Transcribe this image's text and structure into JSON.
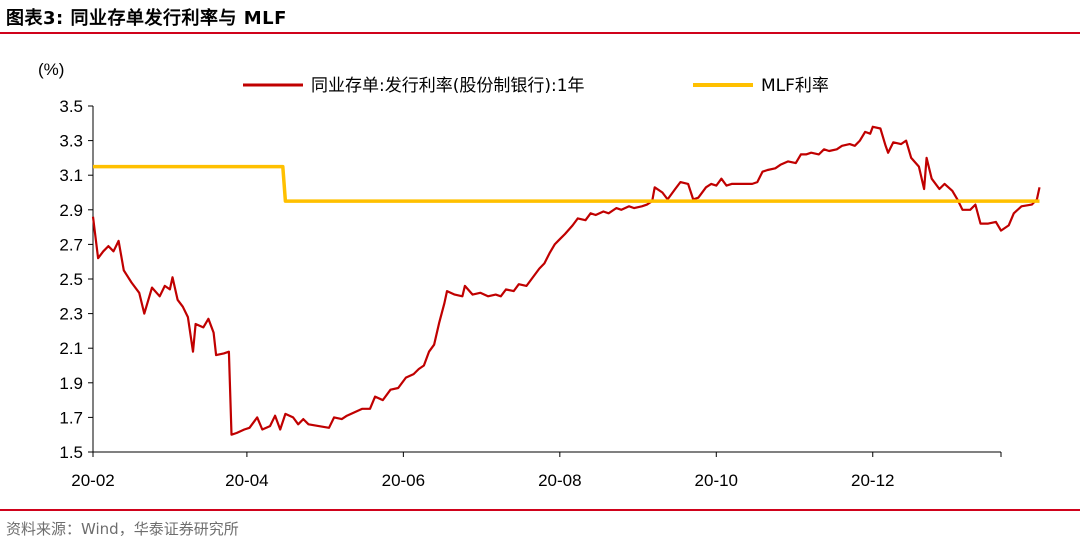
{
  "header": {
    "title": "图表3:  同业存单发行利率与 MLF",
    "rule_color": "#d0021b"
  },
  "footer": {
    "source": "资料来源：Wind，华泰证券研究所"
  },
  "chart_data": {
    "type": "line",
    "ylabel": "(%)",
    "ylim": [
      1.5,
      3.5
    ],
    "yticks": [
      "3.5",
      "3.3",
      "3.1",
      "2.9",
      "2.7",
      "2.5",
      "2.3",
      "2.1",
      "1.9",
      "1.7",
      "1.5"
    ],
    "xlim": [
      "2020-02-01",
      "2021-01-20"
    ],
    "xticks": [
      {
        "date": "2020-02-01",
        "label": "20-02"
      },
      {
        "date": "2020-04-01",
        "label": "20-04"
      },
      {
        "date": "2020-06-01",
        "label": "20-06"
      },
      {
        "date": "2020-08-01",
        "label": "20-08"
      },
      {
        "date": "2020-10-01",
        "label": "20-10"
      },
      {
        "date": "2020-12-01",
        "label": "20-12"
      }
    ],
    "grid": false,
    "legend_position": "top",
    "series": [
      {
        "name": "同业存单:发行利率(股份制银行):1年",
        "color": "#c00000",
        "points": [
          [
            "2020-02-01",
            2.86
          ],
          [
            "2020-02-03",
            2.62
          ],
          [
            "2020-02-05",
            2.66
          ],
          [
            "2020-02-07",
            2.69
          ],
          [
            "2020-02-09",
            2.66
          ],
          [
            "2020-02-11",
            2.72
          ],
          [
            "2020-02-13",
            2.55
          ],
          [
            "2020-02-16",
            2.48
          ],
          [
            "2020-02-19",
            2.42
          ],
          [
            "2020-02-21",
            2.3
          ],
          [
            "2020-02-24",
            2.45
          ],
          [
            "2020-02-27",
            2.4
          ],
          [
            "2020-02-29",
            2.46
          ],
          [
            "2020-03-02",
            2.44
          ],
          [
            "2020-03-03",
            2.51
          ],
          [
            "2020-03-05",
            2.38
          ],
          [
            "2020-03-07",
            2.34
          ],
          [
            "2020-03-09",
            2.28
          ],
          [
            "2020-03-11",
            2.08
          ],
          [
            "2020-03-12",
            2.24
          ],
          [
            "2020-03-15",
            2.22
          ],
          [
            "2020-03-17",
            2.27
          ],
          [
            "2020-03-19",
            2.19
          ],
          [
            "2020-03-20",
            2.06
          ],
          [
            "2020-03-23",
            2.07
          ],
          [
            "2020-03-25",
            2.08
          ],
          [
            "2020-03-26",
            1.6
          ],
          [
            "2020-03-28",
            1.61
          ],
          [
            "2020-03-31",
            1.63
          ],
          [
            "2020-04-02",
            1.64
          ],
          [
            "2020-04-05",
            1.7
          ],
          [
            "2020-04-07",
            1.63
          ],
          [
            "2020-04-10",
            1.65
          ],
          [
            "2020-04-12",
            1.71
          ],
          [
            "2020-04-14",
            1.63
          ],
          [
            "2020-04-16",
            1.72
          ],
          [
            "2020-04-19",
            1.7
          ],
          [
            "2020-04-21",
            1.66
          ],
          [
            "2020-04-23",
            1.69
          ],
          [
            "2020-04-25",
            1.66
          ],
          [
            "2020-04-29",
            1.65
          ],
          [
            "2020-05-03",
            1.64
          ],
          [
            "2020-05-05",
            1.7
          ],
          [
            "2020-05-08",
            1.69
          ],
          [
            "2020-05-10",
            1.71
          ],
          [
            "2020-05-13",
            1.73
          ],
          [
            "2020-05-16",
            1.75
          ],
          [
            "2020-05-19",
            1.75
          ],
          [
            "2020-05-21",
            1.82
          ],
          [
            "2020-05-24",
            1.8
          ],
          [
            "2020-05-27",
            1.86
          ],
          [
            "2020-05-30",
            1.87
          ],
          [
            "2020-06-02",
            1.93
          ],
          [
            "2020-06-05",
            1.95
          ],
          [
            "2020-06-07",
            1.98
          ],
          [
            "2020-06-09",
            2.0
          ],
          [
            "2020-06-11",
            2.08
          ],
          [
            "2020-06-13",
            2.12
          ],
          [
            "2020-06-15",
            2.25
          ],
          [
            "2020-06-17",
            2.36
          ],
          [
            "2020-06-18",
            2.43
          ],
          [
            "2020-06-21",
            2.41
          ],
          [
            "2020-06-24",
            2.4
          ],
          [
            "2020-06-25",
            2.46
          ],
          [
            "2020-06-28",
            2.41
          ],
          [
            "2020-07-01",
            2.42
          ],
          [
            "2020-07-04",
            2.4
          ],
          [
            "2020-07-07",
            2.41
          ],
          [
            "2020-07-09",
            2.4
          ],
          [
            "2020-07-11",
            2.44
          ],
          [
            "2020-07-14",
            2.43
          ],
          [
            "2020-07-16",
            2.47
          ],
          [
            "2020-07-19",
            2.46
          ],
          [
            "2020-07-21",
            2.5
          ],
          [
            "2020-07-24",
            2.56
          ],
          [
            "2020-07-26",
            2.59
          ],
          [
            "2020-07-28",
            2.65
          ],
          [
            "2020-07-30",
            2.7
          ],
          [
            "2020-08-01",
            2.73
          ],
          [
            "2020-08-03",
            2.76
          ],
          [
            "2020-08-06",
            2.81
          ],
          [
            "2020-08-08",
            2.85
          ],
          [
            "2020-08-11",
            2.84
          ],
          [
            "2020-08-13",
            2.88
          ],
          [
            "2020-08-15",
            2.87
          ],
          [
            "2020-08-18",
            2.89
          ],
          [
            "2020-08-20",
            2.88
          ],
          [
            "2020-08-23",
            2.91
          ],
          [
            "2020-08-25",
            2.9
          ],
          [
            "2020-08-28",
            2.92
          ],
          [
            "2020-08-30",
            2.91
          ],
          [
            "2020-09-02",
            2.92
          ],
          [
            "2020-09-04",
            2.93
          ],
          [
            "2020-09-06",
            2.95
          ],
          [
            "2020-09-07",
            3.03
          ],
          [
            "2020-09-10",
            3.0
          ],
          [
            "2020-09-12",
            2.96
          ],
          [
            "2020-09-15",
            3.02
          ],
          [
            "2020-09-17",
            3.06
          ],
          [
            "2020-09-20",
            3.05
          ],
          [
            "2020-09-22",
            2.96
          ],
          [
            "2020-09-24",
            2.97
          ],
          [
            "2020-09-27",
            3.03
          ],
          [
            "2020-09-29",
            3.05
          ],
          [
            "2020-10-01",
            3.04
          ],
          [
            "2020-10-03",
            3.08
          ],
          [
            "2020-10-05",
            3.04
          ],
          [
            "2020-10-07",
            3.05
          ],
          [
            "2020-10-09",
            3.05
          ],
          [
            "2020-10-12",
            3.05
          ],
          [
            "2020-10-15",
            3.05
          ],
          [
            "2020-10-17",
            3.06
          ],
          [
            "2020-10-19",
            3.12
          ],
          [
            "2020-10-21",
            3.13
          ],
          [
            "2020-10-24",
            3.14
          ],
          [
            "2020-10-26",
            3.16
          ],
          [
            "2020-10-29",
            3.18
          ],
          [
            "2020-11-01",
            3.17
          ],
          [
            "2020-11-03",
            3.22
          ],
          [
            "2020-11-05",
            3.22
          ],
          [
            "2020-11-07",
            3.23
          ],
          [
            "2020-11-10",
            3.22
          ],
          [
            "2020-11-12",
            3.25
          ],
          [
            "2020-11-14",
            3.24
          ],
          [
            "2020-11-17",
            3.25
          ],
          [
            "2020-11-19",
            3.27
          ],
          [
            "2020-11-22",
            3.28
          ],
          [
            "2020-11-24",
            3.27
          ],
          [
            "2020-11-26",
            3.3
          ],
          [
            "2020-11-28",
            3.35
          ],
          [
            "2020-11-30",
            3.34
          ],
          [
            "2020-12-01",
            3.38
          ],
          [
            "2020-12-04",
            3.37
          ],
          [
            "2020-12-06",
            3.27
          ],
          [
            "2020-12-07",
            3.23
          ],
          [
            "2020-12-09",
            3.29
          ],
          [
            "2020-12-12",
            3.28
          ],
          [
            "2020-12-14",
            3.3
          ],
          [
            "2020-12-16",
            3.2
          ],
          [
            "2020-12-19",
            3.15
          ],
          [
            "2020-12-21",
            3.02
          ],
          [
            "2020-12-22",
            3.2
          ],
          [
            "2020-12-24",
            3.08
          ],
          [
            "2020-12-27",
            3.02
          ],
          [
            "2020-12-29",
            3.05
          ],
          [
            "2021-01-01",
            3.01
          ],
          [
            "2021-01-03",
            2.96
          ],
          [
            "2021-01-05",
            2.9
          ],
          [
            "2021-01-08",
            2.9
          ],
          [
            "2021-01-10",
            2.93
          ],
          [
            "2021-01-12",
            2.82
          ],
          [
            "2021-01-15",
            2.82
          ],
          [
            "2021-01-18",
            2.83
          ],
          [
            "2021-01-20",
            2.78
          ],
          [
            "2021-01-23",
            2.81
          ],
          [
            "2021-01-25",
            2.88
          ],
          [
            "2021-01-28",
            2.92
          ],
          [
            "2021-02-01",
            2.93
          ],
          [
            "2021-02-03",
            2.96
          ],
          [
            "2021-02-04",
            3.03
          ]
        ]
      },
      {
        "name": "MLF利率",
        "color": "#ffc000",
        "points": [
          [
            "2020-02-01",
            3.15
          ],
          [
            "2020-04-15",
            3.15
          ],
          [
            "2020-04-16",
            2.95
          ],
          [
            "2021-02-04",
            2.95
          ]
        ]
      }
    ]
  }
}
